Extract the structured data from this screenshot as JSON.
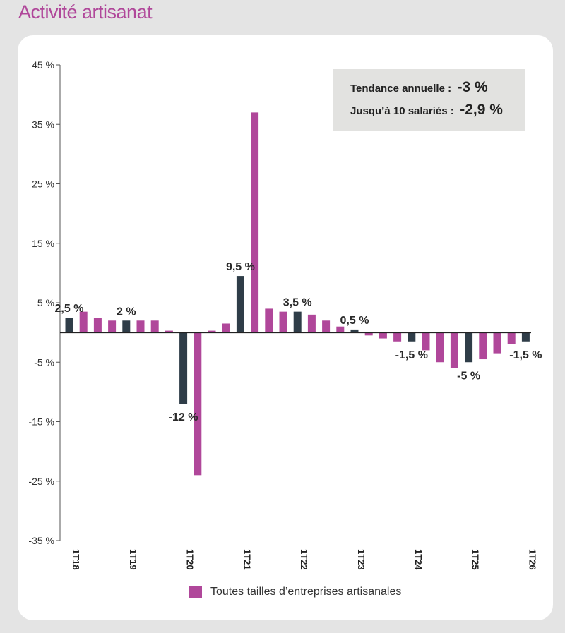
{
  "page": {
    "title": "Activité artisanat"
  },
  "info_box": {
    "line1_label": "Tendance annuelle :",
    "line1_value": "-3 %",
    "line2_label": "Jusqu’à 10 salariés :",
    "line2_value": "-2,9 %"
  },
  "colors": {
    "highlight": "#2f3d48",
    "series": "#b0479a",
    "title": "#b0479a"
  },
  "chart_data": {
    "type": "bar",
    "title": "",
    "xlabel": "",
    "ylabel": "",
    "ylim": [
      -35,
      45
    ],
    "y_ticks": [
      "45 %",
      "35 %",
      "25 %",
      "15 %",
      "5 %",
      "-5 %",
      "-15 %",
      "-25 %",
      "-35 %"
    ],
    "y_tick_values": [
      45,
      35,
      25,
      15,
      5,
      -5,
      -15,
      -25,
      -35
    ],
    "categories": [
      "1T18",
      "2T18",
      "3T18",
      "4T18",
      "1T19",
      "2T19",
      "3T19",
      "4T19",
      "1T20",
      "2T20",
      "3T20",
      "4T20",
      "1T21",
      "2T21",
      "3T21",
      "4T21",
      "1T22",
      "2T22",
      "3T22",
      "4T22",
      "1T23",
      "2T23",
      "3T23",
      "4T23",
      "1T24",
      "2T24",
      "3T24",
      "4T24",
      "1T25",
      "2T25",
      "3T25",
      "4T25",
      "1T26"
    ],
    "x_tick_labels": [
      "1T18",
      "1T19",
      "1T20",
      "1T21",
      "1T22",
      "1T23",
      "1T24",
      "1T25",
      "1T26"
    ],
    "highlighted_categories": [
      "1T18",
      "1T19",
      "1T20",
      "1T21",
      "1T22",
      "1T23",
      "1T24",
      "1T25",
      "1T26"
    ],
    "series": [
      {
        "name": "Toutes tailles d’entreprises artisanales",
        "values": [
          2.5,
          3.5,
          2.5,
          2,
          2,
          2,
          2,
          0.3,
          -12,
          -24,
          0.3,
          1.5,
          9.5,
          37,
          4,
          3.5,
          3.5,
          3,
          2,
          1,
          0.5,
          -0.5,
          -1,
          -1.5,
          -1.5,
          -3,
          -5,
          -6,
          -5,
          -4.5,
          -3.5,
          -2,
          -1.5
        ]
      }
    ],
    "data_labels": [
      {
        "category": "1T18",
        "text": "2,5 %"
      },
      {
        "category": "1T19",
        "text": "2 %"
      },
      {
        "category": "1T20",
        "text": "-12 %"
      },
      {
        "category": "1T21",
        "text": "9,5 %"
      },
      {
        "category": "1T22",
        "text": "3,5 %"
      },
      {
        "category": "1T23",
        "text": "0,5 %"
      },
      {
        "category": "1T24",
        "text": "-1,5 %"
      },
      {
        "category": "1T25",
        "text": "-5 %"
      },
      {
        "category": "1T26",
        "text": "-1,5 %"
      }
    ],
    "legend": {
      "position": "bottom",
      "label": "Toutes tailles d’entreprises artisanales"
    },
    "grid": false
  }
}
